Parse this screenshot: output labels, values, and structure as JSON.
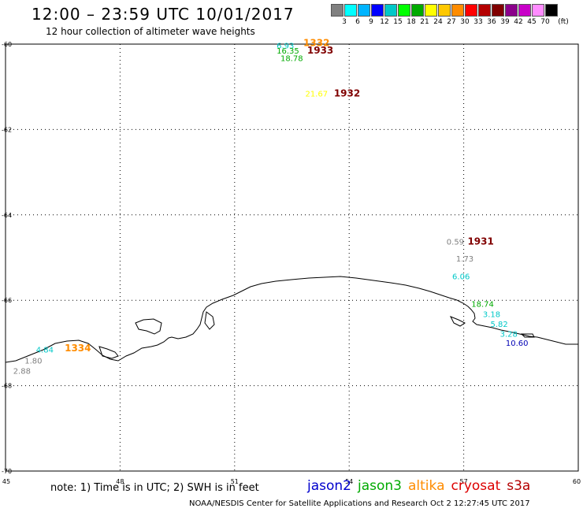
{
  "header": {
    "title": "12:00 – 23:59 UTC 10/01/2017",
    "subtitle": "12 hour collection of altimeter wave heights"
  },
  "legend": {
    "unit": "(ft)",
    "colors": [
      "#808080",
      "#00ffff",
      "#00b4ff",
      "#0000ff",
      "#00c8c8",
      "#00ff00",
      "#00aa00",
      "#ffff00",
      "#ffc800",
      "#ff8c00",
      "#ff0000",
      "#b40000",
      "#800000",
      "#8b008b",
      "#c800c8",
      "#ff8cff",
      "#000000"
    ],
    "labels": [
      "3",
      "6",
      "9",
      "12",
      "15",
      "18",
      "21",
      "24",
      "27",
      "30",
      "33",
      "36",
      "39",
      "42",
      "45",
      "70"
    ]
  },
  "axes": {
    "lon_labels": [
      "45",
      "48",
      "51",
      "54",
      "57",
      "60"
    ],
    "lat_labels": [
      "-60",
      "-62",
      "-64",
      "-66",
      "-68",
      "-70"
    ]
  },
  "points": [
    {
      "text": "6.93",
      "color": "#00c8c8",
      "lon": 52.1,
      "lat": -60.1
    },
    {
      "text": "1332",
      "color": "#ff8c00",
      "lon": 52.8,
      "lat": -60.05,
      "time": true
    },
    {
      "text": "16.35",
      "color": "#00aa00",
      "lon": 52.1,
      "lat": -60.22
    },
    {
      "text": "1933",
      "color": "#800000",
      "lon": 52.9,
      "lat": -60.22,
      "time": true
    },
    {
      "text": "18.78",
      "color": "#00aa00",
      "lon": 52.2,
      "lat": -60.4
    },
    {
      "text": "21.67",
      "color": "#ffff00",
      "lon": 52.85,
      "lat": -61.23
    },
    {
      "text": "1932",
      "color": "#800000",
      "lon": 53.6,
      "lat": -61.23,
      "time": true
    },
    {
      "text": "0.59",
      "color": "#808080",
      "lon": 56.55,
      "lat": -64.7
    },
    {
      "text": "1931",
      "color": "#800000",
      "lon": 57.1,
      "lat": -64.7,
      "time": true
    },
    {
      "text": "1.73",
      "color": "#808080",
      "lon": 56.8,
      "lat": -65.09
    },
    {
      "text": "6.06",
      "color": "#00c8c8",
      "lon": 56.7,
      "lat": -65.51
    },
    {
      "text": "18.74",
      "color": "#00aa00",
      "lon": 57.2,
      "lat": -66.15
    },
    {
      "text": "3.18",
      "color": "#00c8c8",
      "lon": 57.5,
      "lat": -66.39
    },
    {
      "text": "5.82",
      "color": "#00c8c8",
      "lon": 57.7,
      "lat": -66.62
    },
    {
      "text": "3.28",
      "color": "#00c8c8",
      "lon": 57.95,
      "lat": -66.85
    },
    {
      "text": "10.60",
      "color": "#0000b4",
      "lon": 58.1,
      "lat": -67.07
    },
    {
      "text": "4.84",
      "color": "#00c8c8",
      "lon": 45.8,
      "lat": -67.22
    },
    {
      "text": "1334",
      "color": "#ff8c00",
      "lon": 46.55,
      "lat": -67.2,
      "time": true
    },
    {
      "text": "1.80",
      "color": "#808080",
      "lon": 45.5,
      "lat": -67.48
    },
    {
      "text": "2.88",
      "color": "#808080",
      "lon": 45.2,
      "lat": -67.72
    }
  ],
  "footer": {
    "note": "note: 1) Time is in UTC; 2) SWH is in feet",
    "satellites": [
      {
        "name": "jason2",
        "color": "#0000cd"
      },
      {
        "name": "jason3",
        "color": "#00aa00"
      },
      {
        "name": "altika",
        "color": "#ff8c00"
      },
      {
        "name": "cryosat",
        "color": "#dd0000"
      },
      {
        "name": "s3a",
        "color": "#b40000"
      }
    ],
    "credit": "NOAA/NESDIS Center for Satellite Applications and Research    Oct  2 12:27:45 UTC 2017"
  }
}
